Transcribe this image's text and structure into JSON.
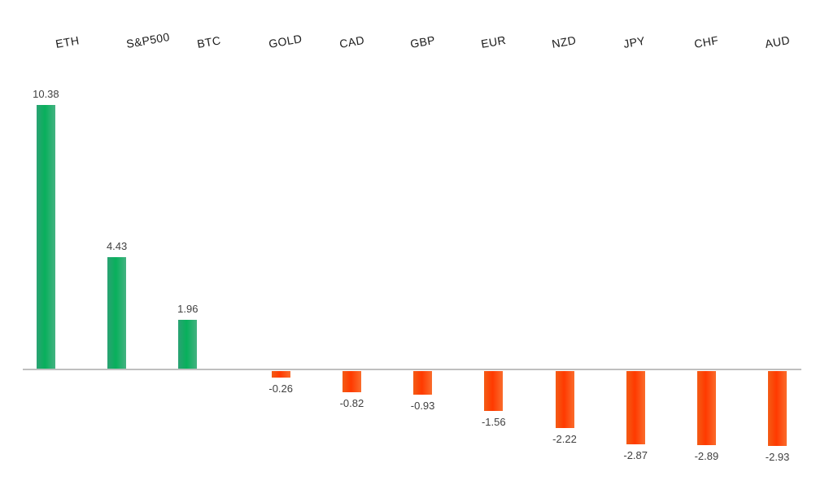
{
  "chart_data": {
    "type": "bar",
    "title": "",
    "xlabel": "",
    "ylabel": "",
    "categories": [
      "ETH",
      "S&P500",
      "BTC",
      "GOLD",
      "CAD",
      "GBP",
      "EUR",
      "NZD",
      "JPY",
      "CHF",
      "AUD"
    ],
    "values": [
      10.38,
      4.43,
      1.96,
      -0.26,
      -0.82,
      -0.93,
      -1.56,
      -2.22,
      -2.87,
      -2.89,
      -2.93
    ],
    "value_labels": [
      "10.38",
      "4.43",
      "1.96",
      "-0.26",
      "-0.82",
      "-0.93",
      "-1.56",
      "-2.22",
      "-2.87",
      "-2.89",
      "-2.93"
    ],
    "ylim": [
      -3.5,
      11
    ],
    "grid": false,
    "legend": false,
    "category_labels_position": "top-rotated",
    "value_labels_position": "outside-end",
    "colors": {
      "positive": "#08b05c",
      "positive_gradient": [
        "#2ba273",
        "#08b05c",
        "#45b282"
      ],
      "negative": "#ff3a00",
      "negative_gradient": [
        "#f35c16",
        "#ff3a00",
        "#fa6c2c"
      ],
      "axis_line": "#bfbfbf",
      "value_label_text": "#404040",
      "category_label_text": "#1a1a1a",
      "background": "#ffffff"
    }
  }
}
